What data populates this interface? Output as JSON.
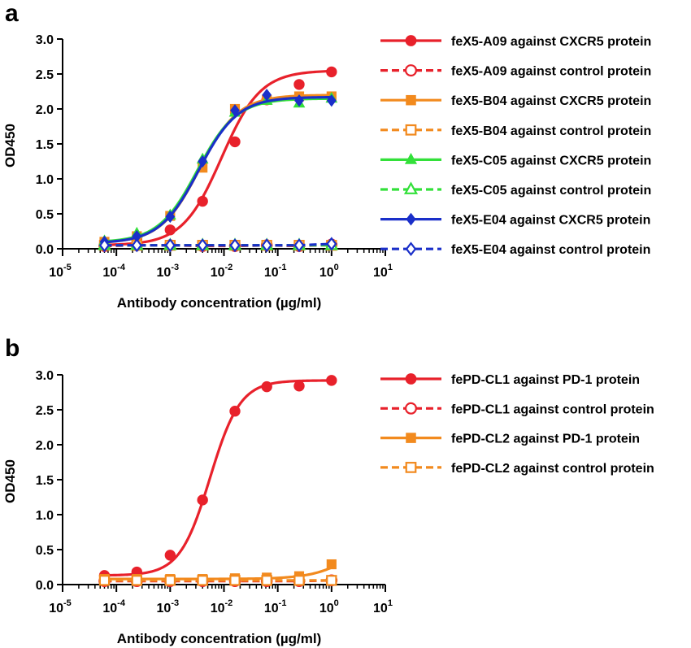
{
  "panels": [
    {
      "letter": "a",
      "chart_data": {
        "type": "line",
        "xscale": "log",
        "xlim": [
          1e-05,
          10
        ],
        "ylim": [
          0,
          3.0
        ],
        "xlabel": "Antibody concentration (µg/ml)",
        "ylabel": "OD450",
        "xtick_labels": [
          {
            "base": "10",
            "exp": "-5"
          },
          {
            "base": "10",
            "exp": "-4"
          },
          {
            "base": "10",
            "exp": "-3"
          },
          {
            "base": "10",
            "exp": "-2"
          },
          {
            "base": "10",
            "exp": "-1"
          },
          {
            "base": "10",
            "exp": "0"
          },
          {
            "base": "10",
            "exp": "1"
          }
        ],
        "ytick_labels": [
          "0.0",
          "0.5",
          "1.0",
          "1.5",
          "2.0",
          "2.5",
          "3.0"
        ],
        "legend_position": "right",
        "x": [
          6e-05,
          0.00024,
          0.001,
          0.004,
          0.016,
          0.0625,
          0.25,
          1
        ],
        "series": [
          {
            "name": "feX5-A09 against CXCR5 protein",
            "color": "#e8212b",
            "marker": "circle",
            "filled": true,
            "dashed": false,
            "values": [
              0.07,
              0.13,
              0.27,
              0.68,
              1.53,
              2.13,
              2.35,
              2.53
            ],
            "fit": {
              "bottom": 0.05,
              "top": 2.55,
              "ec50": 0.009,
              "hill": 1.2
            }
          },
          {
            "name": "feX5-A09 against control protein",
            "color": "#e8212b",
            "marker": "circle",
            "filled": false,
            "dashed": true,
            "values": [
              0.04,
              0.05,
              0.05,
              0.04,
              0.04,
              0.05,
              0.04,
              0.06
            ],
            "fit": null
          },
          {
            "name": "feX5-B04 against CXCR5 protein",
            "color": "#f28a1e",
            "marker": "square",
            "filled": true,
            "dashed": false,
            "values": [
              0.1,
              0.18,
              0.47,
              1.16,
              2.0,
              2.13,
              2.18,
              2.18
            ],
            "fit": {
              "bottom": 0.08,
              "top": 2.2,
              "ec50": 0.0035,
              "hill": 1.2
            }
          },
          {
            "name": "feX5-B04 against control protein",
            "color": "#f28a1e",
            "marker": "square",
            "filled": false,
            "dashed": true,
            "values": [
              0.05,
              0.05,
              0.05,
              0.05,
              0.05,
              0.05,
              0.05,
              0.05
            ],
            "fit": null
          },
          {
            "name": "feX5-C05 against CXCR5 protein",
            "color": "#33e03a",
            "marker": "triangle",
            "filled": true,
            "dashed": false,
            "values": [
              0.11,
              0.22,
              0.48,
              1.28,
              1.95,
              2.12,
              2.08,
              2.15
            ],
            "fit": {
              "bottom": 0.09,
              "top": 2.15,
              "ec50": 0.0032,
              "hill": 1.2
            }
          },
          {
            "name": "feX5-C05 against control protein",
            "color": "#33e03a",
            "marker": "triangle",
            "filled": false,
            "dashed": true,
            "values": [
              0.05,
              0.05,
              0.05,
              0.05,
              0.05,
              0.05,
              0.05,
              0.05
            ],
            "fit": null
          },
          {
            "name": "feX5-E04 against CXCR5 protein",
            "color": "#1a2fc9",
            "marker": "diamond",
            "filled": true,
            "dashed": false,
            "values": [
              0.1,
              0.18,
              0.46,
              1.25,
              1.98,
              2.2,
              2.12,
              2.12
            ],
            "fit": {
              "bottom": 0.08,
              "top": 2.17,
              "ec50": 0.0034,
              "hill": 1.2
            }
          },
          {
            "name": "feX5-E04 against control protein",
            "color": "#1a2fc9",
            "marker": "diamond",
            "filled": false,
            "dashed": true,
            "values": [
              0.05,
              0.05,
              0.05,
              0.05,
              0.05,
              0.05,
              0.05,
              0.07
            ],
            "fit": null
          }
        ]
      }
    },
    {
      "letter": "b",
      "chart_data": {
        "type": "line",
        "xscale": "log",
        "xlim": [
          1e-05,
          10
        ],
        "ylim": [
          0,
          3.0
        ],
        "xlabel": "Antibody concentration (µg/ml)",
        "ylabel": "OD450",
        "xtick_labels": [
          {
            "base": "10",
            "exp": "-5"
          },
          {
            "base": "10",
            "exp": "-4"
          },
          {
            "base": "10",
            "exp": "-3"
          },
          {
            "base": "10",
            "exp": "-2"
          },
          {
            "base": "10",
            "exp": "-1"
          },
          {
            "base": "10",
            "exp": "0"
          },
          {
            "base": "10",
            "exp": "1"
          }
        ],
        "ytick_labels": [
          "0.0",
          "0.5",
          "1.0",
          "1.5",
          "2.0",
          "2.5",
          "3.0"
        ],
        "legend_position": "right",
        "x": [
          6e-05,
          0.00024,
          0.001,
          0.004,
          0.016,
          0.0625,
          0.25,
          1
        ],
        "series": [
          {
            "name": "fePD-CL1 against PD-1 protein",
            "color": "#e8212b",
            "marker": "circle",
            "filled": true,
            "dashed": false,
            "values": [
              0.13,
              0.18,
              0.42,
              1.21,
              2.48,
              2.83,
              2.84,
              2.92
            ],
            "fit": {
              "bottom": 0.13,
              "top": 2.92,
              "ec50": 0.0055,
              "hill": 1.55
            }
          },
          {
            "name": "fePD-CL1 against control protein",
            "color": "#e8212b",
            "marker": "circle",
            "filled": false,
            "dashed": true,
            "values": [
              0.05,
              0.05,
              0.05,
              0.05,
              0.05,
              0.05,
              0.05,
              0.06
            ],
            "fit": null
          },
          {
            "name": "fePD-CL2 against PD-1 protein",
            "color": "#f28a1e",
            "marker": "square",
            "filled": true,
            "dashed": false,
            "values": [
              0.08,
              0.08,
              0.08,
              0.08,
              0.09,
              0.1,
              0.12,
              0.29
            ],
            "fit": {
              "bottom": 0.08,
              "top": 1.0,
              "ec50": 4.0,
              "hill": 1.1
            }
          },
          {
            "name": "fePD-CL2 against control protein",
            "color": "#f28a1e",
            "marker": "square",
            "filled": false,
            "dashed": true,
            "values": [
              0.06,
              0.06,
              0.06,
              0.06,
              0.06,
              0.06,
              0.06,
              0.06
            ],
            "fit": null
          }
        ]
      }
    }
  ]
}
